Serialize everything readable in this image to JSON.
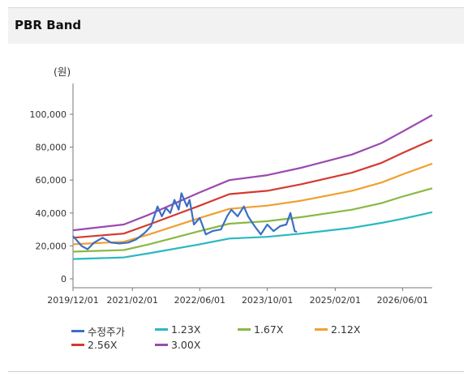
{
  "panel": {
    "title": "PBR Band"
  },
  "chart_data": {
    "type": "line",
    "unit_label": "(원)",
    "ylim": [
      0,
      100000
    ],
    "y_ticks": [
      "100,000",
      "80,000",
      "60,000",
      "40,000",
      "20,000",
      "0"
    ],
    "y_tick_values": [
      100000,
      80000,
      60000,
      40000,
      20000,
      0
    ],
    "x_ticks": [
      "2019/12/01",
      "2021/02/01",
      "2022/06/01",
      "2023/10/01",
      "2025/02/01",
      "2026/06/01"
    ],
    "x_tick_dates": [
      "2019-12-01",
      "2021-02-01",
      "2022-06-01",
      "2023-10-01",
      "2025-02-01",
      "2026-06-01"
    ],
    "xlim": [
      "2019-12-01",
      "2027-01-01"
    ],
    "grid": false,
    "legend_position": "bottom",
    "series": [
      {
        "name": "수정주가",
        "color": "#3a6fc4",
        "points": [
          [
            "2019-12-01",
            26000
          ],
          [
            "2020-02-01",
            20000
          ],
          [
            "2020-03-15",
            18000
          ],
          [
            "2020-05-01",
            22000
          ],
          [
            "2020-07-01",
            25000
          ],
          [
            "2020-09-01",
            22000
          ],
          [
            "2020-11-01",
            21500
          ],
          [
            "2021-01-01",
            22000
          ],
          [
            "2021-03-01",
            24000
          ],
          [
            "2021-05-01",
            28000
          ],
          [
            "2021-06-15",
            32000
          ],
          [
            "2021-08-01",
            44000
          ],
          [
            "2021-09-01",
            38000
          ],
          [
            "2021-10-01",
            43000
          ],
          [
            "2021-11-01",
            40000
          ],
          [
            "2021-12-01",
            48000
          ],
          [
            "2022-01-01",
            42000
          ],
          [
            "2022-01-20",
            52000
          ],
          [
            "2022-03-01",
            44000
          ],
          [
            "2022-03-20",
            48000
          ],
          [
            "2022-04-20",
            33000
          ],
          [
            "2022-06-01",
            37000
          ],
          [
            "2022-07-15",
            27000
          ],
          [
            "2022-09-01",
            29000
          ],
          [
            "2022-11-01",
            30000
          ],
          [
            "2022-12-15",
            38000
          ],
          [
            "2023-01-15",
            42000
          ],
          [
            "2023-03-01",
            38000
          ],
          [
            "2023-04-15",
            44000
          ],
          [
            "2023-05-15",
            38000
          ],
          [
            "2023-07-01",
            32000
          ],
          [
            "2023-08-15",
            27000
          ],
          [
            "2023-10-01",
            33000
          ],
          [
            "2023-11-15",
            29000
          ],
          [
            "2024-01-01",
            32000
          ],
          [
            "2024-02-15",
            33000
          ],
          [
            "2024-03-15",
            40000
          ],
          [
            "2024-04-15",
            29000
          ],
          [
            "2024-05-01",
            28500
          ]
        ]
      },
      {
        "name": "1.23X",
        "color": "#2ab8c0",
        "points": [
          [
            "2019-12-01",
            12000
          ],
          [
            "2020-12-01",
            13000
          ],
          [
            "2021-06-01",
            15500
          ],
          [
            "2022-06-01",
            21000
          ],
          [
            "2023-01-01",
            24500
          ],
          [
            "2023-10-01",
            25500
          ],
          [
            "2024-06-01",
            27500
          ],
          [
            "2025-06-01",
            31000
          ],
          [
            "2026-01-01",
            34000
          ],
          [
            "2026-06-01",
            36500
          ],
          [
            "2027-01-01",
            40500
          ]
        ]
      },
      {
        "name": "1.67X",
        "color": "#8ab844",
        "points": [
          [
            "2019-12-01",
            16500
          ],
          [
            "2020-12-01",
            17500
          ],
          [
            "2021-06-01",
            21000
          ],
          [
            "2022-06-01",
            29000
          ],
          [
            "2023-01-01",
            33500
          ],
          [
            "2023-10-01",
            35000
          ],
          [
            "2024-06-01",
            37500
          ],
          [
            "2025-06-01",
            42000
          ],
          [
            "2026-01-01",
            46000
          ],
          [
            "2026-06-01",
            50000
          ],
          [
            "2027-01-01",
            55000
          ]
        ]
      },
      {
        "name": "2.12X",
        "color": "#f0a030",
        "points": [
          [
            "2019-12-01",
            21000
          ],
          [
            "2020-12-01",
            22500
          ],
          [
            "2021-06-01",
            27000
          ],
          [
            "2022-06-01",
            37000
          ],
          [
            "2023-01-01",
            42500
          ],
          [
            "2023-10-01",
            44500
          ],
          [
            "2024-06-01",
            47500
          ],
          [
            "2025-06-01",
            53500
          ],
          [
            "2026-01-01",
            58500
          ],
          [
            "2026-06-01",
            63500
          ],
          [
            "2027-01-01",
            70000
          ]
        ]
      },
      {
        "name": "2.56X",
        "color": "#d43a30",
        "points": [
          [
            "2019-12-01",
            25000
          ],
          [
            "2020-12-01",
            27500
          ],
          [
            "2021-06-01",
            33000
          ],
          [
            "2022-06-01",
            44500
          ],
          [
            "2023-01-01",
            51500
          ],
          [
            "2023-10-01",
            53500
          ],
          [
            "2024-06-01",
            57500
          ],
          [
            "2025-06-01",
            64500
          ],
          [
            "2026-01-01",
            70500
          ],
          [
            "2026-06-01",
            76500
          ],
          [
            "2027-01-01",
            84500
          ]
        ]
      },
      {
        "name": "3.00X",
        "color": "#9a4ab0",
        "points": [
          [
            "2019-12-01",
            29500
          ],
          [
            "2020-12-01",
            33000
          ],
          [
            "2021-06-01",
            39000
          ],
          [
            "2022-06-01",
            52500
          ],
          [
            "2023-01-01",
            60000
          ],
          [
            "2023-10-01",
            63000
          ],
          [
            "2024-06-01",
            67500
          ],
          [
            "2025-06-01",
            75500
          ],
          [
            "2026-01-01",
            82500
          ],
          [
            "2026-06-01",
            89500
          ],
          [
            "2027-01-01",
            99500
          ]
        ]
      }
    ]
  }
}
